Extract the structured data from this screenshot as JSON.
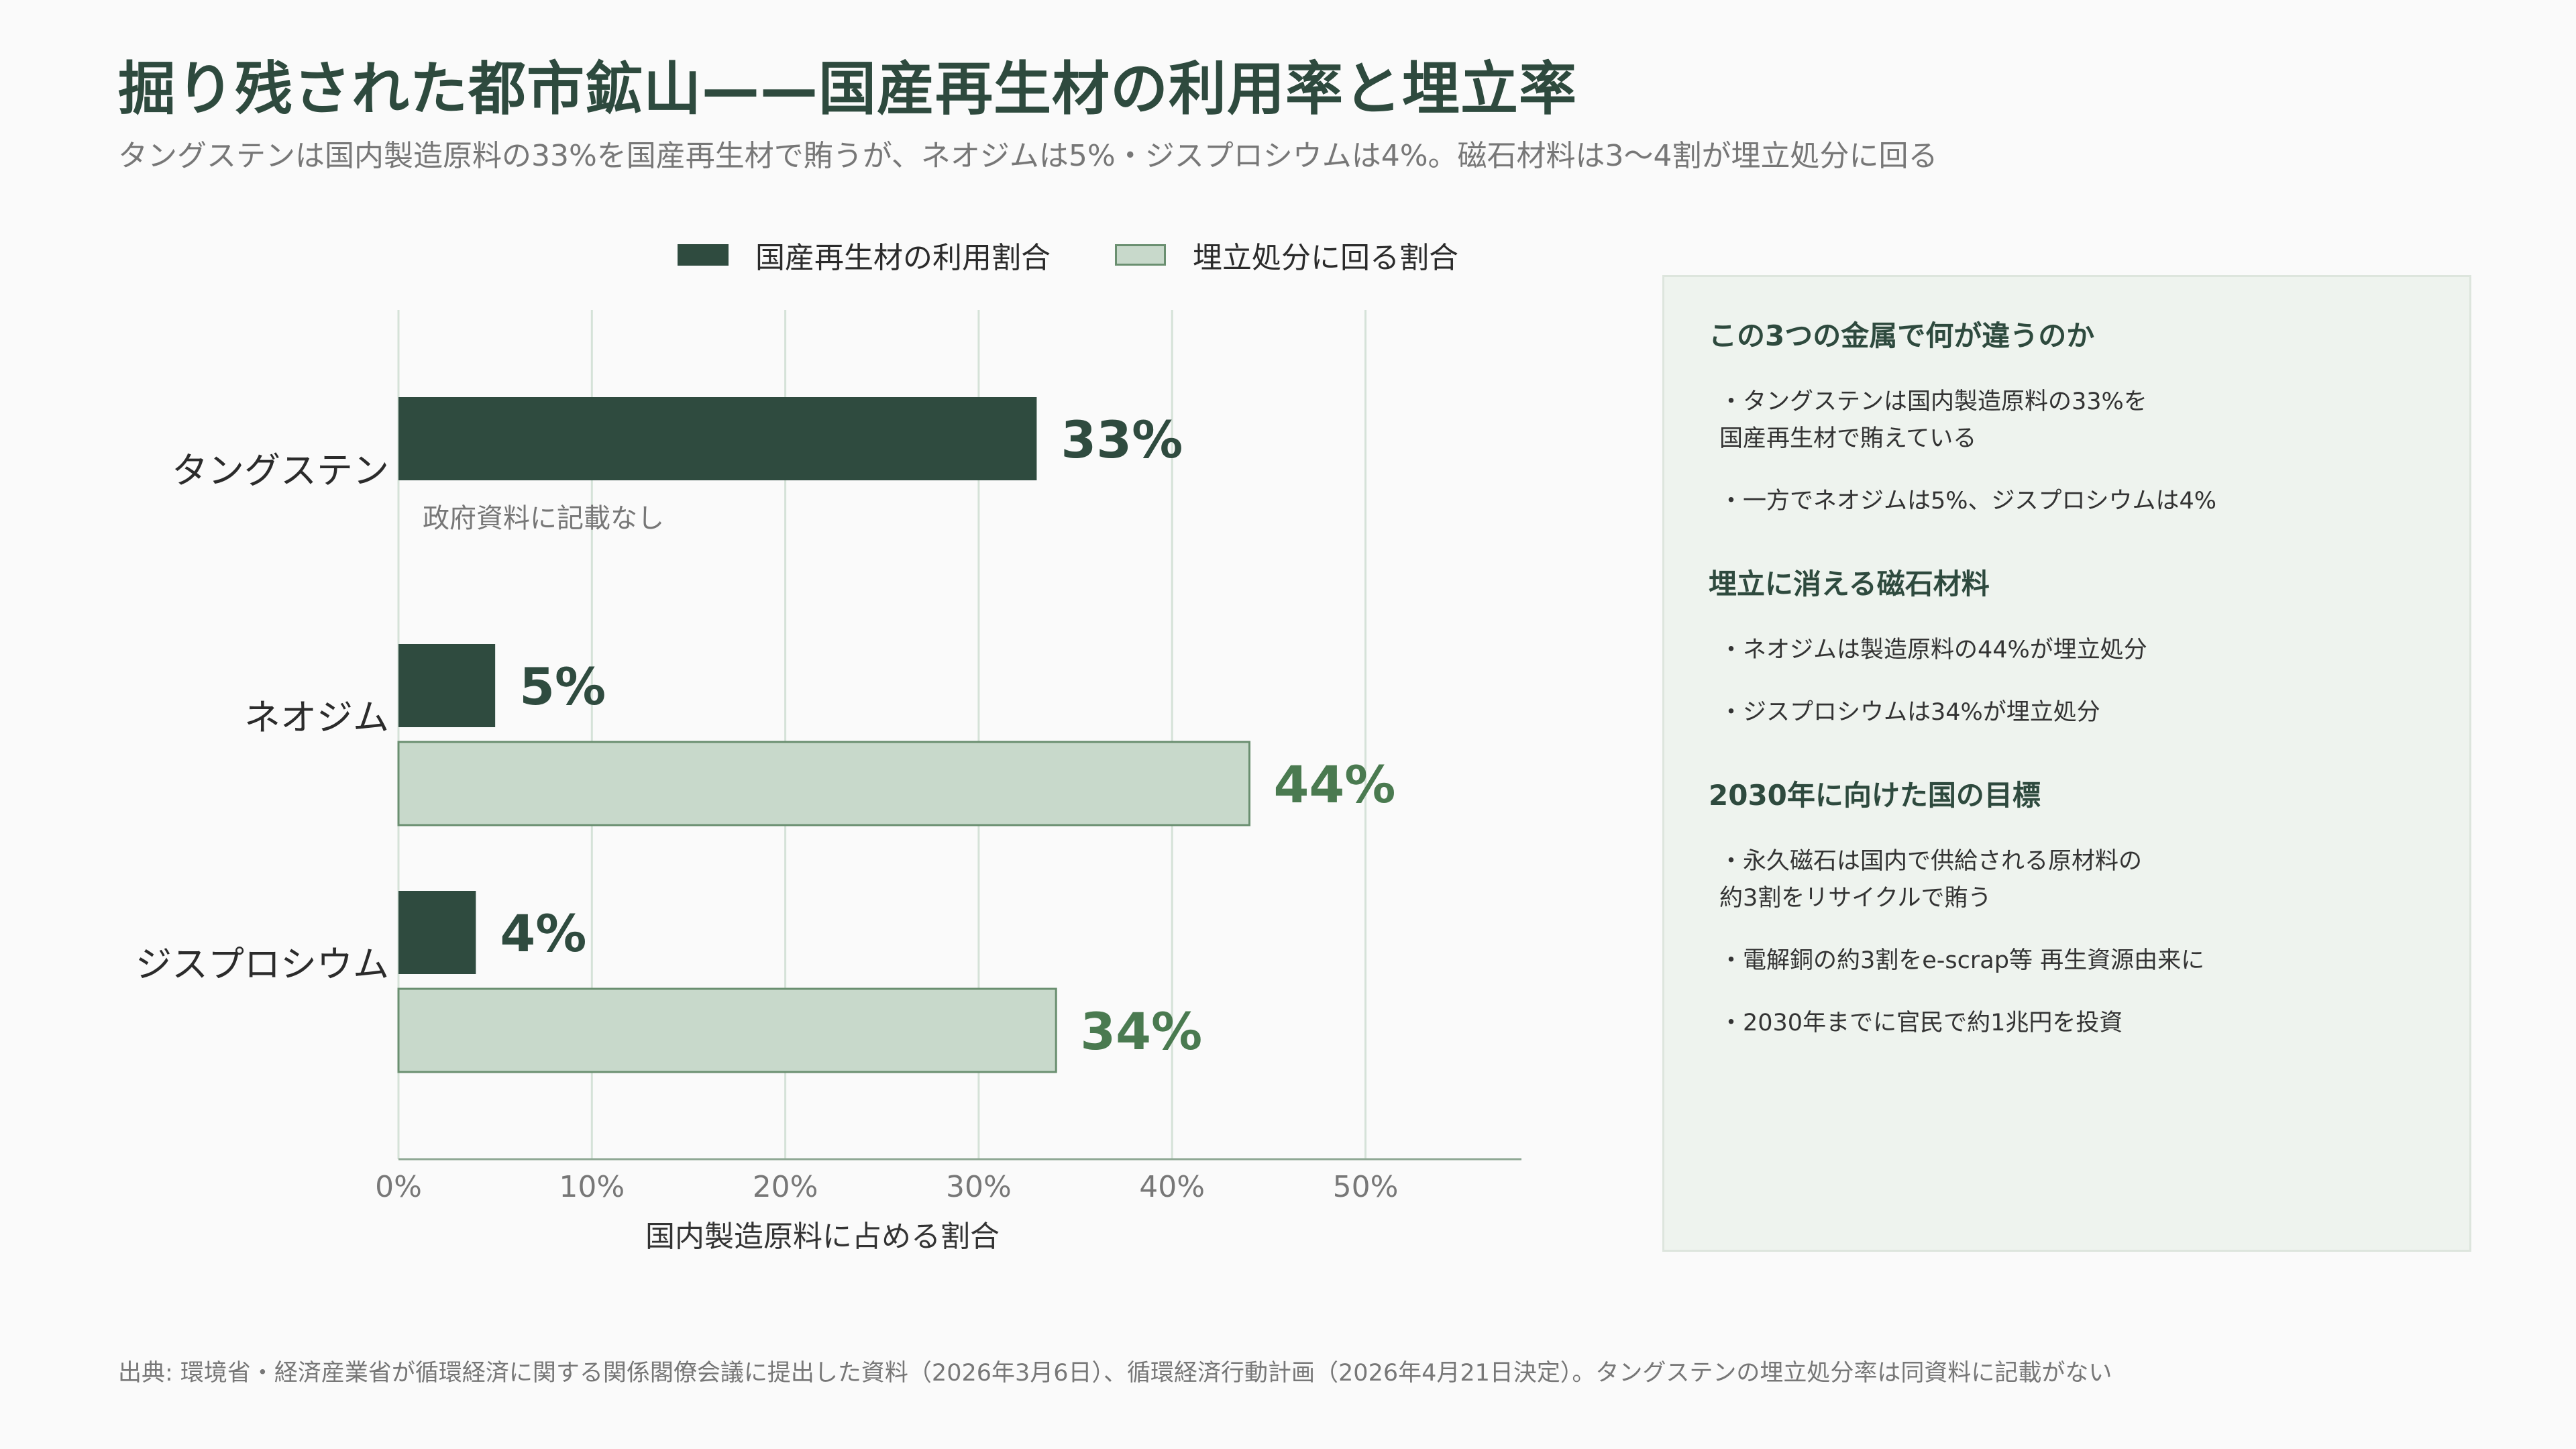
{
  "title": "掘り残された都市鉱山——国産再生材の利用率と埋立率",
  "subtitle": "タングステンは国内製造原料の33%を国産再生材で賄うが、ネオジムは5%・ジスプロシウムは4%。磁石材料は3〜4割が埋立処分に回る",
  "legend": {
    "recycled": "国産再生材の利用割合",
    "landfill": "埋立処分に回る割合"
  },
  "colors": {
    "recycled_fill": "#2f4b3f",
    "landfill_fill": "#c8d9cb",
    "landfill_stroke": "#6a8f70",
    "landfill_label": "#4a7a50",
    "grid": "#d5e2d8"
  },
  "chart_data": {
    "type": "bar",
    "orientation": "horizontal",
    "categories": [
      "タングステン",
      "ネオジム",
      "ジスプロシウム"
    ],
    "series": [
      {
        "name": "国産再生材の利用割合",
        "values": [
          33,
          5,
          4
        ]
      },
      {
        "name": "埋立処分に回る割合",
        "values": [
          null,
          44,
          34
        ]
      }
    ],
    "xlabel": "国内製造原料に占める割合",
    "xlim": [
      0,
      58
    ],
    "xticks": [
      0,
      10,
      20,
      30,
      40,
      50
    ],
    "tick_suffix": "%",
    "grid": true,
    "legend_position": "top",
    "annotations": [
      {
        "category": "タングステン",
        "series": "埋立処分に回る割合",
        "text": "政府資料に記載なし"
      }
    ]
  },
  "panel": {
    "sections": [
      {
        "heading": "この3つの金属で何が違うのか",
        "items": [
          "・タングステンは国内製造原料の33%を\n国産再生材で賄えている",
          "・一方でネオジムは5%、ジスプロシウムは4%"
        ]
      },
      {
        "heading": "埋立に消える磁石材料",
        "items": [
          "・ネオジムは製造原料の44%が埋立処分",
          "・ジスプロシウムは34%が埋立処分"
        ]
      },
      {
        "heading": "2030年に向けた国の目標",
        "items": [
          "・永久磁石は国内で供給される原材料の\n約3割をリサイクルで賄う",
          "・電解銅の約3割をe-scrap等 再生資源由来に",
          "・2030年までに官民で約1兆円を投資"
        ]
      }
    ]
  },
  "source": "出典: 環境省・経済産業省が循環経済に関する関係閣僚会議に提出した資料（2026年3月6日）、循環経済行動計画（2026年4月21日決定）。タングステンの埋立処分率は同資料に記載がない"
}
